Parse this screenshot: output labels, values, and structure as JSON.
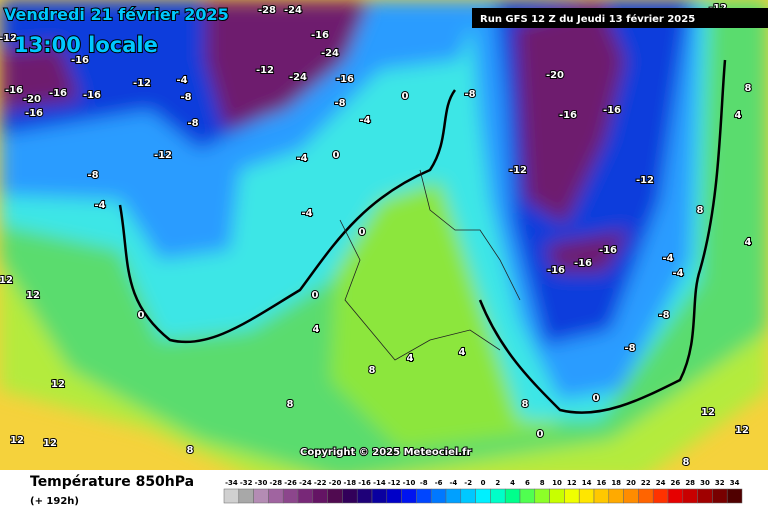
{
  "map": {
    "date": "Vendredi 21 février 2025",
    "time": "13:00 locale",
    "run": "Run GFS 12 Z du Jeudi 13 février 2025",
    "copyright": "Copyright © 2025 Meteociel.fr",
    "labels": [
      "-12",
      "-16",
      "-16",
      "-20",
      "-16",
      "-16",
      "-16",
      "-12",
      "-4",
      "-8",
      "-8",
      "-12",
      "-8",
      "-4",
      "-28",
      "-24",
      "-16",
      "-24",
      "-12",
      "-24",
      "-16",
      "-8",
      "-4",
      "0",
      "-8",
      "-4",
      "0",
      "-4",
      "0",
      "0",
      "0",
      "4",
      "8",
      "8",
      "12",
      "12",
      "12",
      "12",
      "12",
      "-20",
      "-16",
      "-16",
      "-12",
      "-12",
      "-16",
      "-16",
      "-16",
      "-4",
      "-4",
      "-8",
      "-8",
      "0",
      "0",
      "4",
      "4",
      "8",
      "8",
      "8",
      "4",
      "8",
      "4",
      "12",
      "12",
      "8",
      "-12"
    ]
  },
  "legend": {
    "title": "Température 850hPa",
    "subtitle": "(+ 192h)",
    "values": [
      -34,
      -32,
      -30,
      -28,
      -26,
      -24,
      -22,
      -20,
      -18,
      -16,
      -14,
      -12,
      -10,
      -8,
      -6,
      -4,
      -2,
      0,
      2,
      4,
      6,
      8,
      10,
      12,
      14,
      16,
      18,
      20,
      22,
      24,
      26,
      28,
      30,
      32,
      34
    ],
    "colors": [
      "#d0d0d0",
      "#a8a8a8",
      "#b48cb4",
      "#a064a0",
      "#8c468c",
      "#782878",
      "#641464",
      "#500a50",
      "#32005a",
      "#1e0078",
      "#0a00a0",
      "#0000c8",
      "#0014f0",
      "#0046ff",
      "#0078ff",
      "#00a0ff",
      "#00c8ff",
      "#00f0ff",
      "#00ffc8",
      "#00ff8c",
      "#50ff50",
      "#8cff28",
      "#c8ff00",
      "#f0ff00",
      "#ffe600",
      "#ffc800",
      "#ffaa00",
      "#ff8c00",
      "#ff6400",
      "#ff3200",
      "#e60000",
      "#c80000",
      "#a00000",
      "#780000",
      "#500000"
    ]
  }
}
